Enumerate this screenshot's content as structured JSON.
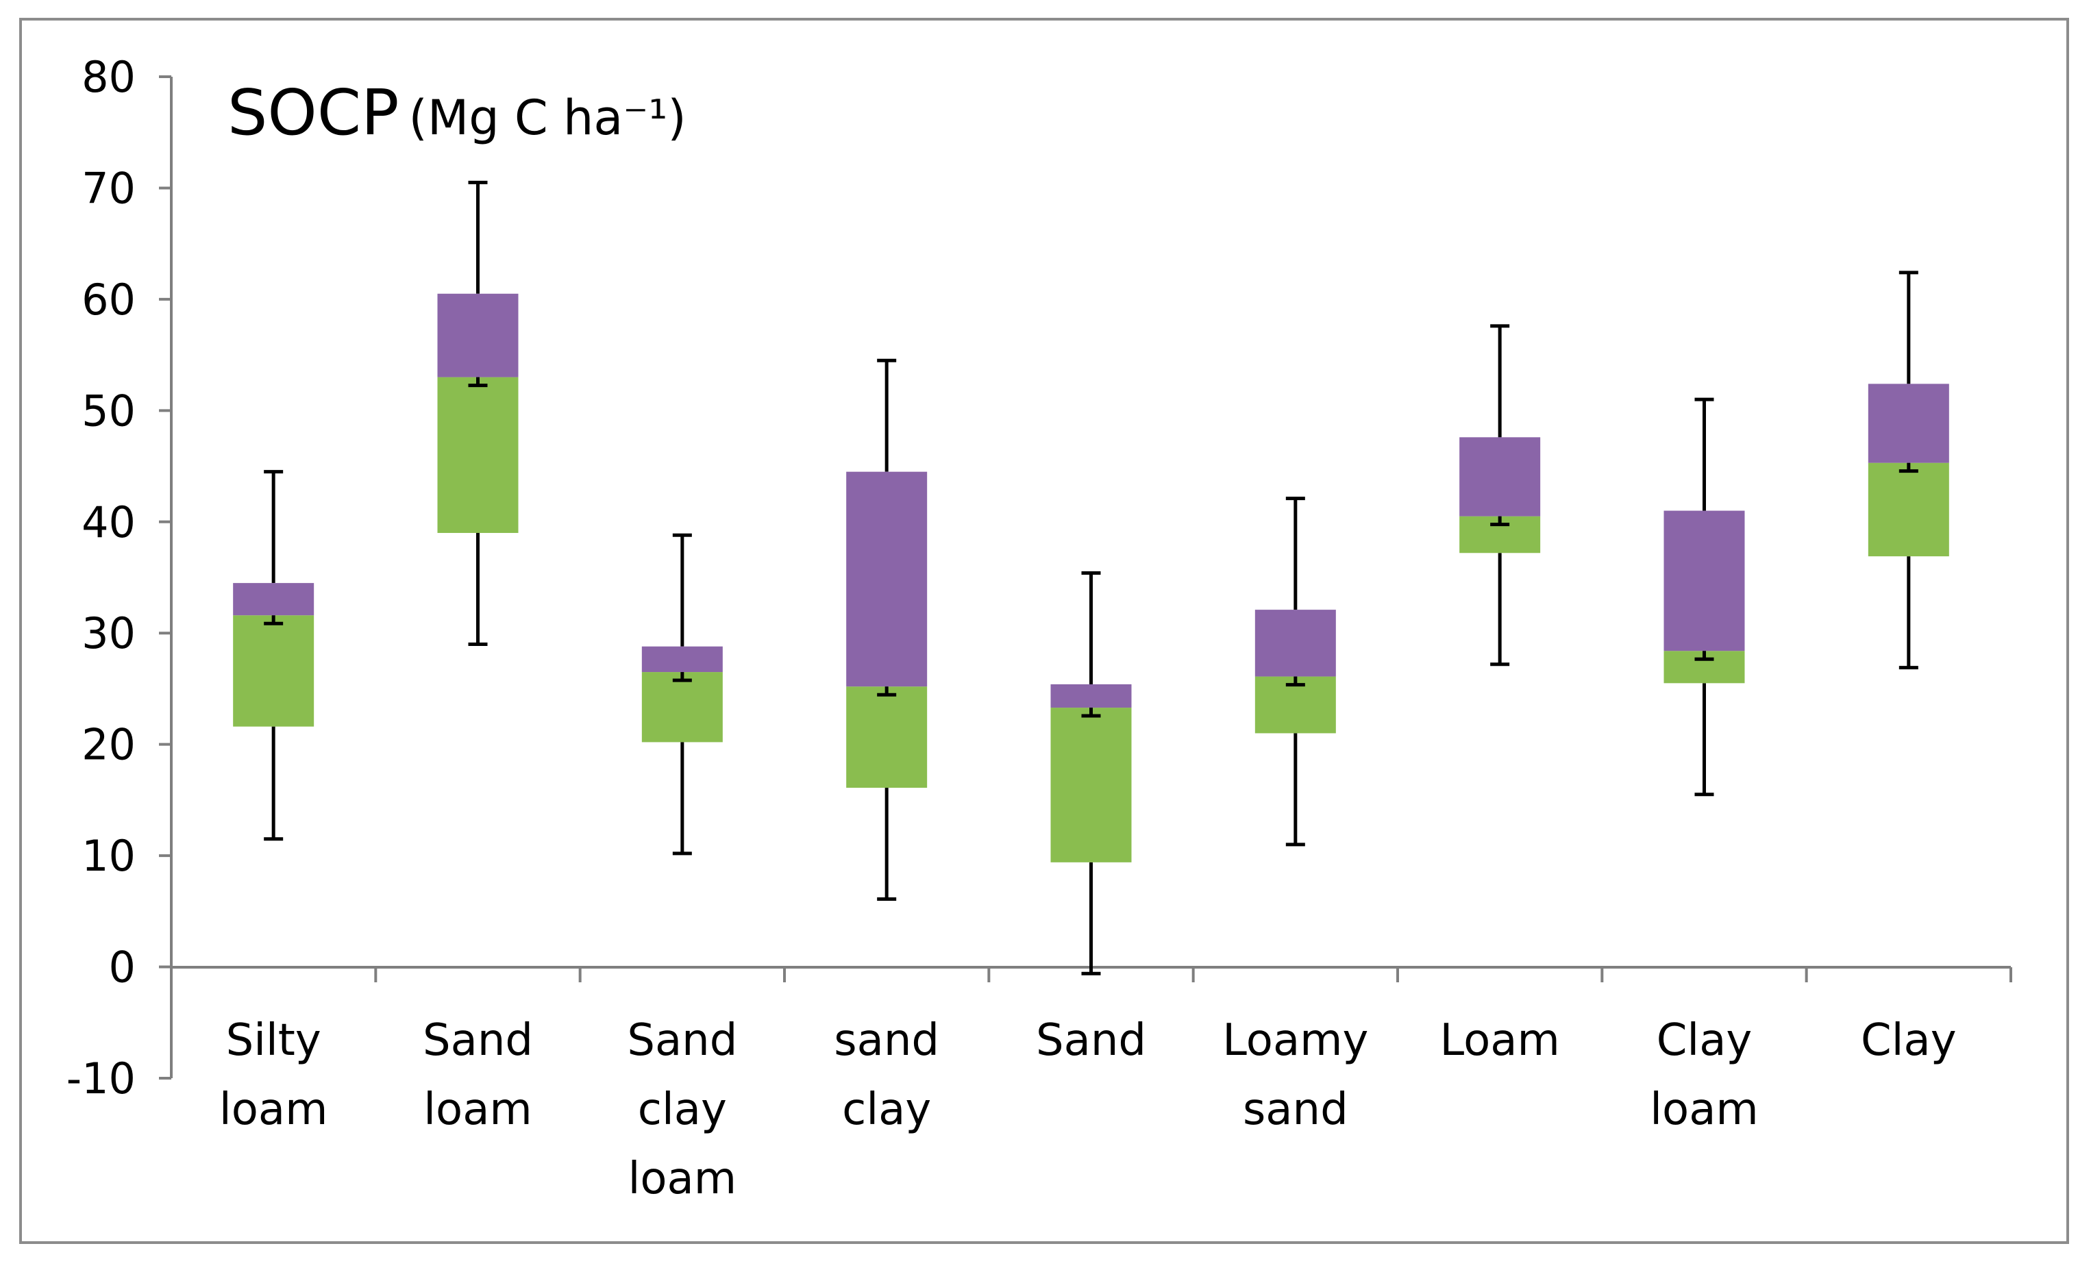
{
  "chart_data": {
    "type": "box",
    "title": "SOCP",
    "title_unit": "Mg C ha⁻¹",
    "xlabel": "",
    "ylabel": "",
    "ylim": [
      -10,
      80
    ],
    "yticks": [
      80,
      70,
      60,
      50,
      40,
      30,
      20,
      10,
      0,
      -10
    ],
    "grid": false,
    "legend": "none",
    "colors": {
      "lower_box": "#8ABD4F",
      "upper_box": "#8A65A8",
      "whisker": "#000000",
      "axis": "#7f7f7f"
    },
    "categories": [
      [
        "Silty",
        "loam"
      ],
      [
        "Sand",
        "loam"
      ],
      [
        "Sand",
        "clay",
        "loam"
      ],
      [
        "sand",
        "clay"
      ],
      [
        "Sand"
      ],
      [
        "Loamy",
        "sand"
      ],
      [
        "Loam"
      ],
      [
        "Clay",
        "loam"
      ],
      [
        "Clay"
      ]
    ],
    "boxes": [
      {
        "min": 11.5,
        "q1": 21.6,
        "median": 31.6,
        "q3": 34.5,
        "max": 44.5
      },
      {
        "min": 29.0,
        "q1": 39.0,
        "median": 53.0,
        "q3": 60.5,
        "max": 70.5
      },
      {
        "min": 10.2,
        "q1": 20.2,
        "median": 26.5,
        "q3": 28.8,
        "max": 38.8
      },
      {
        "min": 6.1,
        "q1": 16.1,
        "median": 25.2,
        "q3": 44.5,
        "max": 54.5
      },
      {
        "min": -0.6,
        "q1": 9.4,
        "median": 23.3,
        "q3": 25.4,
        "max": 35.4
      },
      {
        "min": 11.0,
        "q1": 21.0,
        "median": 26.1,
        "q3": 32.1,
        "max": 42.1
      },
      {
        "min": 27.2,
        "q1": 37.2,
        "median": 40.5,
        "q3": 47.6,
        "max": 57.6
      },
      {
        "min": 15.5,
        "q1": 25.5,
        "median": 28.4,
        "q3": 41.0,
        "max": 51.0
      },
      {
        "min": 26.9,
        "q1": 36.9,
        "median": 45.3,
        "q3": 52.4,
        "max": 62.4
      }
    ]
  }
}
